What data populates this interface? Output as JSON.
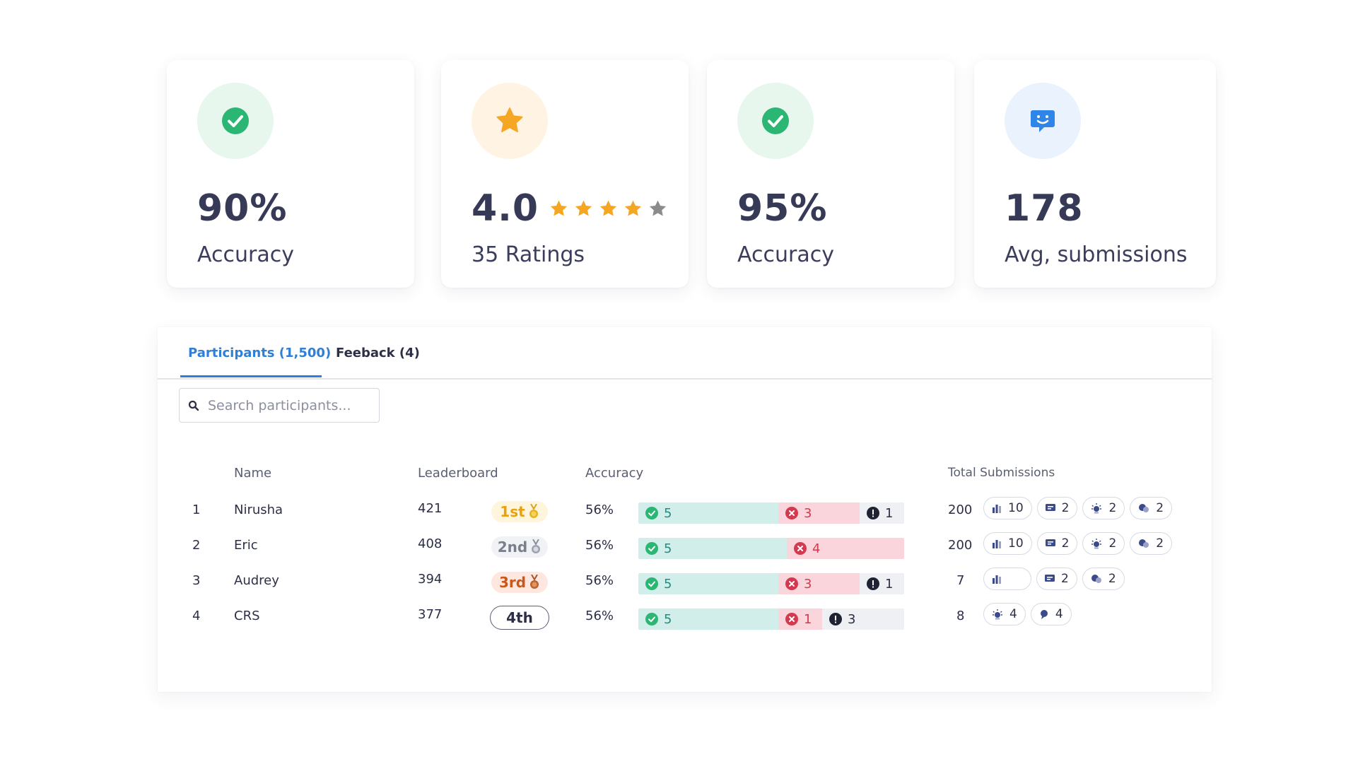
{
  "stats": [
    {
      "icon": "check-circle-icon",
      "value": "90%",
      "label": "Accuracy",
      "color": "#2bb673",
      "bg": "#e7f7ee"
    },
    {
      "icon": "star-icon",
      "value": "4.0",
      "label": "35 Ratings",
      "color": "#f5a623",
      "bg": "#fff3e3",
      "stars_filled": 4,
      "stars_total": 5
    },
    {
      "icon": "check-circle-icon",
      "value": "95%",
      "label": "Accuracy",
      "color": "#2bb673",
      "bg": "#e7f7ee"
    },
    {
      "icon": "smiley-chat-icon",
      "value": "178",
      "label": "Avg, submissions",
      "color": "#2f86e8",
      "bg": "#eaf3fd"
    }
  ],
  "tabs": [
    {
      "label": "Participants (1,500)",
      "active": true
    },
    {
      "label": "Feeback (4)",
      "active": false
    }
  ],
  "search": {
    "placeholder": "Search participants..."
  },
  "table": {
    "headers": {
      "name": "Name",
      "leaderboard": "Leaderboard",
      "accuracy": "Accuracy",
      "total": "Total Submissions"
    },
    "rows": [
      {
        "rank": "1",
        "name": "Nirusha",
        "score": "421",
        "place": "1st",
        "medal": "gold",
        "accuracy": "56%",
        "correct": "5",
        "wrong": "3",
        "pending": "1",
        "total": "200",
        "submissions": [
          {
            "icon": "bar-chart-icon",
            "count": "10"
          },
          {
            "icon": "card-icon",
            "count": "2"
          },
          {
            "icon": "bulb-icon",
            "count": "2"
          },
          {
            "icon": "chat-bubbles-icon",
            "count": "2"
          }
        ]
      },
      {
        "rank": "2",
        "name": "Eric",
        "score": "408",
        "place": "2nd",
        "medal": "silver",
        "accuracy": "56%",
        "correct": "5",
        "wrong": "4",
        "pending": "",
        "total": "200",
        "submissions": [
          {
            "icon": "bar-chart-icon",
            "count": "10"
          },
          {
            "icon": "card-icon",
            "count": "2"
          },
          {
            "icon": "bulb-icon",
            "count": "2"
          },
          {
            "icon": "chat-bubbles-icon",
            "count": "2"
          }
        ]
      },
      {
        "rank": "3",
        "name": "Audrey",
        "score": "394",
        "place": "3rd",
        "medal": "bronze",
        "accuracy": "56%",
        "correct": "5",
        "wrong": "3",
        "pending": "1",
        "total": "7",
        "submissions": [
          {
            "icon": "bar-chart-icon",
            "count": ""
          },
          {
            "icon": "card-icon",
            "count": "2"
          },
          {
            "icon": "chat-bubbles-icon",
            "count": "2"
          }
        ]
      },
      {
        "rank": "4",
        "name": "CRS",
        "score": "377",
        "place": "4th",
        "medal": "none",
        "accuracy": "56%",
        "correct": "5",
        "wrong": "1",
        "pending": "3",
        "total": "8",
        "submissions": [
          {
            "icon": "bulb-icon",
            "count": "4"
          },
          {
            "icon": "pin-bubble-icon",
            "count": "4"
          }
        ]
      }
    ]
  },
  "colors": {
    "accent": "#2f7fd6",
    "correct": "#1f8e7d",
    "wrong": "#d33a4f",
    "gold": "#e9a20b",
    "silver": "#7b7f8c",
    "bronze": "#c75a1a"
  }
}
